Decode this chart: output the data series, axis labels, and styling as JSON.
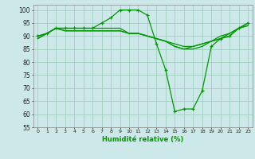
{
  "xlabel": "Humidité relative (%)",
  "ylim": [
    55,
    102
  ],
  "xlim": [
    -0.5,
    23.5
  ],
  "yticks": [
    55,
    60,
    65,
    70,
    75,
    80,
    85,
    90,
    95,
    100
  ],
  "xticks": [
    0,
    1,
    2,
    3,
    4,
    5,
    6,
    7,
    8,
    9,
    10,
    11,
    12,
    13,
    14,
    15,
    16,
    17,
    18,
    19,
    20,
    21,
    22,
    23
  ],
  "bg_color": "#cce8e8",
  "grid_color": "#99ccbb",
  "line_color": "#009900",
  "line_main": [
    90,
    91,
    93,
    93,
    93,
    93,
    93,
    95,
    97,
    100,
    100,
    100,
    98,
    87,
    77,
    61,
    62,
    62,
    69,
    86,
    89,
    90,
    93,
    95
  ],
  "line2": [
    90,
    91,
    93,
    93,
    93,
    93,
    93,
    93,
    93,
    93,
    91,
    91,
    90,
    89,
    88,
    87,
    86,
    86,
    87,
    88,
    90,
    91,
    93,
    95
  ],
  "line3": [
    89,
    91,
    93,
    92,
    92,
    92,
    92,
    92,
    92,
    92,
    91,
    91,
    90,
    89,
    88,
    86,
    85,
    85,
    86,
    88,
    89,
    91,
    93,
    94
  ],
  "line4": [
    89,
    91,
    93,
    92,
    92,
    92,
    92,
    92,
    92,
    92,
    91,
    91,
    90,
    89,
    88,
    86,
    85,
    86,
    87,
    88,
    89,
    90,
    93,
    94
  ]
}
